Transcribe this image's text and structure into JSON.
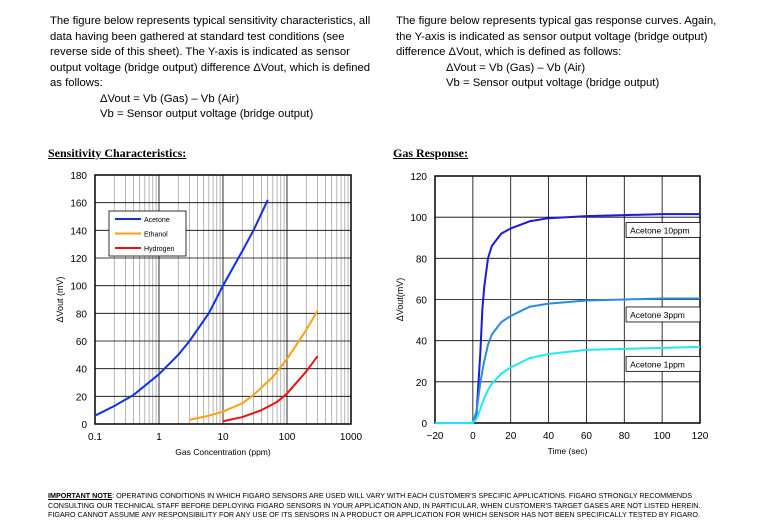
{
  "left_text": {
    "para": "The figure below represents typical sensitivity characteristics, all data having been gathered at standard test conditions (see reverse side of this sheet).  The Y-axis is indicated as sensor output voltage (bridge output) difference ΔVout, which is defined as follows:",
    "eq1": "ΔVout = Vb (Gas) – Vb (Air)",
    "eq2": "Vb = Sensor output voltage (bridge output)"
  },
  "right_text": {
    "para": "The figure below represents typical gas response curves. Again, the Y-axis is indicated as sensor output voltage (bridge output) difference ΔVout, which is defined as follows:",
    "eq1": "ΔVout = Vb (Gas) – Vb (Air)",
    "eq2": "Vb = Sensor output voltage (bridge output)"
  },
  "chart_data": [
    {
      "type": "line",
      "title": "Sensitivity Characteristics:",
      "xlabel": "Gas Concentration (ppm)",
      "ylabel": "ΔVout (mV)",
      "xscale": "log",
      "xlim": [
        0.1,
        1000
      ],
      "ylim": [
        0,
        180
      ],
      "xticks": [
        "0.1",
        "1",
        "10",
        "100",
        "1000"
      ],
      "yticks": [
        "0",
        "20",
        "40",
        "60",
        "80",
        "100",
        "120",
        "140",
        "160",
        "180"
      ],
      "legend": "top-left",
      "grid": true,
      "series": [
        {
          "name": "Acetone",
          "color": "#1030e8",
          "points": [
            [
              0.1,
              6
            ],
            [
              0.2,
              13
            ],
            [
              0.4,
              21
            ],
            [
              1,
              36
            ],
            [
              2,
              50
            ],
            [
              3,
              60
            ],
            [
              6,
              80
            ],
            [
              10,
              100
            ],
            [
              20,
              125
            ],
            [
              30,
              140
            ],
            [
              50,
              162
            ]
          ]
        },
        {
          "name": "Ethanol",
          "color": "#ff9f10",
          "points": [
            [
              3,
              3
            ],
            [
              6,
              6
            ],
            [
              10,
              9
            ],
            [
              20,
              15
            ],
            [
              30,
              21
            ],
            [
              60,
              34
            ],
            [
              100,
              47
            ],
            [
              200,
              68
            ],
            [
              300,
              82
            ]
          ]
        },
        {
          "name": "Hydrogen",
          "color": "#f01010",
          "points": [
            [
              10,
              2
            ],
            [
              20,
              5
            ],
            [
              40,
              10
            ],
            [
              70,
              16
            ],
            [
              100,
              22
            ],
            [
              200,
              38
            ],
            [
              300,
              49
            ]
          ]
        }
      ]
    },
    {
      "type": "line",
      "title": "Gas Response:",
      "xlabel": "Time (sec)",
      "ylabel": "ΔVout(mV)",
      "xlim": [
        -20,
        120
      ],
      "ylim": [
        0,
        120
      ],
      "xticks": [
        "−20",
        "0",
        "20",
        "40",
        "60",
        "80",
        "100",
        "120"
      ],
      "yticks": [
        "0",
        "20",
        "40",
        "60",
        "80",
        "100",
        "120"
      ],
      "grid": true,
      "series": [
        {
          "name": "Acetone 10ppm",
          "color": "#1a1ad8",
          "label_at": [
            82,
            93
          ],
          "points": [
            [
              -20,
              0
            ],
            [
              0,
              0
            ],
            [
              2,
              5
            ],
            [
              4,
              35
            ],
            [
              5,
              55
            ],
            [
              6,
              66
            ],
            [
              8,
              80
            ],
            [
              10,
              86
            ],
            [
              15,
              92
            ],
            [
              20,
              94.5
            ],
            [
              30,
              98
            ],
            [
              40,
              99.5
            ],
            [
              60,
              100.5
            ],
            [
              80,
              101
            ],
            [
              100,
              101.5
            ],
            [
              120,
              101.5
            ]
          ]
        },
        {
          "name": "Acetone 3ppm",
          "color": "#2a8ae8",
          "label_at": [
            82,
            52
          ],
          "points": [
            [
              -20,
              0
            ],
            [
              0,
              0
            ],
            [
              2,
              6
            ],
            [
              4,
              20
            ],
            [
              6,
              30
            ],
            [
              8,
              38
            ],
            [
              10,
              43
            ],
            [
              15,
              49
            ],
            [
              20,
              52
            ],
            [
              30,
              56.5
            ],
            [
              40,
              58
            ],
            [
              60,
              59.5
            ],
            [
              80,
              60
            ],
            [
              100,
              60.5
            ],
            [
              120,
              60.5
            ]
          ]
        },
        {
          "name": "Acetone 1ppm",
          "color": "#20e8f0",
          "label_at": [
            82,
            28
          ],
          "points": [
            [
              -20,
              0
            ],
            [
              0,
              0
            ],
            [
              2,
              2
            ],
            [
              4,
              7
            ],
            [
              6,
              12
            ],
            [
              8,
              16
            ],
            [
              10,
              19
            ],
            [
              15,
              24
            ],
            [
              20,
              27
            ],
            [
              30,
              31.5
            ],
            [
              40,
              33.5
            ],
            [
              60,
              35.5
            ],
            [
              80,
              36
            ],
            [
              100,
              36.5
            ],
            [
              120,
              37
            ]
          ]
        }
      ]
    }
  ],
  "note": {
    "label": "IMPORTANT NOTE",
    "text": ": OPERATING CONDITIONS IN WHICH FIGARO SENSORS ARE USED WILL VARY WITH EACH CUSTOMER'S SPECIFIC APPLICATIONS. FIGARO STRONGLY RECOMMENDS CONSULTING OUR TECHNICAL STAFF BEFORE DEPLOYING FIGARO SENSORS IN YOUR APPLICATION AND, IN PARTICULAR, WHEN CUSTOMER'S TARGET GASES ARE NOT LISTED HEREIN. FIGARO CANNOT ASSUME ANY RESPONSIBILITY FOR ANY USE OF ITS SENSORS IN A PRODUCT OR APPLICATION FOR WHICH SENSOR HAS NOT BEEN SPECIFICALLY TESTED BY FIGARO."
  }
}
